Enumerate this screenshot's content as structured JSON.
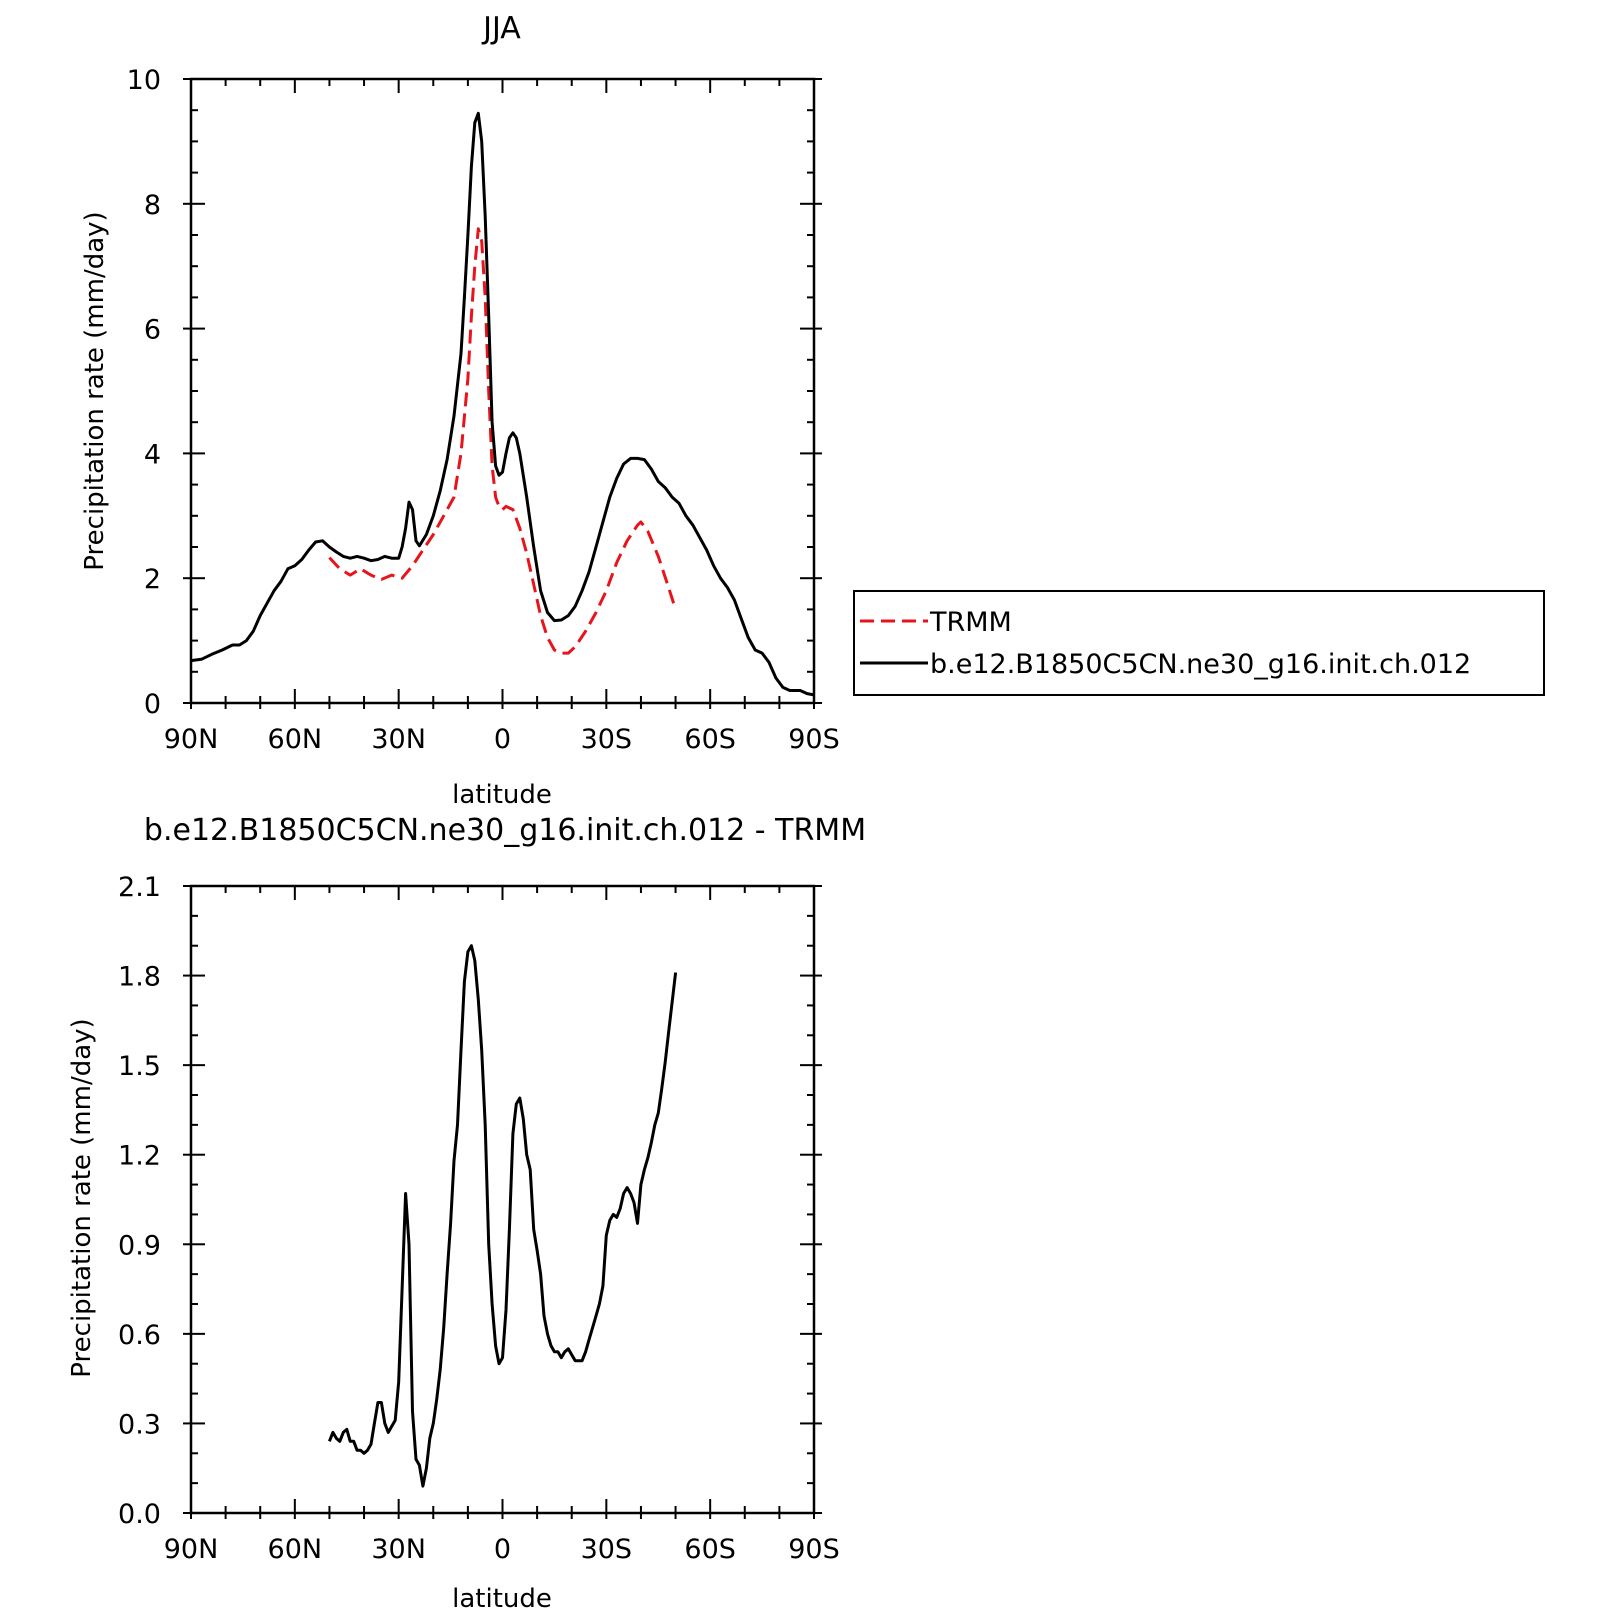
{
  "chart_data": [
    {
      "type": "line",
      "title": "JJA",
      "xlabel": "latitude",
      "ylabel": "Precipitation rate (mm/day)",
      "xlim": [
        90,
        -90
      ],
      "ylim": [
        0,
        10
      ],
      "xticks": [
        {
          "value": 90,
          "label": "90N"
        },
        {
          "value": 60,
          "label": "60N"
        },
        {
          "value": 30,
          "label": "30N"
        },
        {
          "value": 0,
          "label": "0"
        },
        {
          "value": -30,
          "label": "30S"
        },
        {
          "value": -60,
          "label": "60S"
        },
        {
          "value": -90,
          "label": "90S"
        }
      ],
      "yticks": [
        {
          "value": 0,
          "label": "0"
        },
        {
          "value": 2,
          "label": "2"
        },
        {
          "value": 4,
          "label": "4"
        },
        {
          "value": 6,
          "label": "6"
        },
        {
          "value": 8,
          "label": "8"
        },
        {
          "value": 10,
          "label": "10"
        }
      ],
      "legend": {
        "position": "right"
      },
      "series": [
        {
          "name": "TRMM",
          "color": "#e8141b",
          "dash": "dashed",
          "points": [
            [
              50,
              2.33
            ],
            [
              47,
              2.15
            ],
            [
              44,
              2.05
            ],
            [
              41,
              2.15
            ],
            [
              38,
              2.05
            ],
            [
              35,
              1.98
            ],
            [
              32,
              2.05
            ],
            [
              29,
              2.0
            ],
            [
              26,
              2.2
            ],
            [
              23,
              2.45
            ],
            [
              20,
              2.7
            ],
            [
              17,
              3.0
            ],
            [
              14,
              3.3
            ],
            [
              12,
              4.0
            ],
            [
              10,
              5.2
            ],
            [
              9,
              6.2
            ],
            [
              8,
              7.0
            ],
            [
              7,
              7.6
            ],
            [
              6,
              7.4
            ],
            [
              5,
              6.5
            ],
            [
              4,
              5.0
            ],
            [
              3,
              3.8
            ],
            [
              2,
              3.3
            ],
            [
              1,
              3.15
            ],
            [
              0,
              3.1
            ],
            [
              -1,
              3.15
            ],
            [
              -3,
              3.1
            ],
            [
              -5,
              2.8
            ],
            [
              -7,
              2.4
            ],
            [
              -9,
              1.9
            ],
            [
              -11,
              1.4
            ],
            [
              -13,
              1.05
            ],
            [
              -15,
              0.85
            ],
            [
              -17,
              0.8
            ],
            [
              -19,
              0.8
            ],
            [
              -21,
              0.9
            ],
            [
              -24,
              1.15
            ],
            [
              -27,
              1.45
            ],
            [
              -30,
              1.8
            ],
            [
              -33,
              2.25
            ],
            [
              -36,
              2.6
            ],
            [
              -39,
              2.85
            ],
            [
              -40,
              2.9
            ],
            [
              -42,
              2.75
            ],
            [
              -45,
              2.35
            ],
            [
              -48,
              1.85
            ],
            [
              -50,
              1.5
            ]
          ]
        },
        {
          "name": "b.e12.B1850C5CN.ne30_g16.init.ch.012",
          "color": "#000000",
          "dash": "solid",
          "points": [
            [
              90,
              0.68
            ],
            [
              87,
              0.7
            ],
            [
              84,
              0.78
            ],
            [
              81,
              0.85
            ],
            [
              78,
              0.93
            ],
            [
              76,
              0.93
            ],
            [
              74,
              1.0
            ],
            [
              72,
              1.15
            ],
            [
              70,
              1.4
            ],
            [
              68,
              1.6
            ],
            [
              66,
              1.8
            ],
            [
              64,
              1.95
            ],
            [
              62,
              2.15
            ],
            [
              60,
              2.2
            ],
            [
              58,
              2.3
            ],
            [
              56,
              2.45
            ],
            [
              54,
              2.58
            ],
            [
              52,
              2.6
            ],
            [
              50,
              2.5
            ],
            [
              48,
              2.42
            ],
            [
              46,
              2.35
            ],
            [
              44,
              2.32
            ],
            [
              42,
              2.35
            ],
            [
              40,
              2.32
            ],
            [
              38,
              2.28
            ],
            [
              36,
              2.3
            ],
            [
              34,
              2.35
            ],
            [
              32,
              2.32
            ],
            [
              30,
              2.32
            ],
            [
              29,
              2.5
            ],
            [
              28,
              2.8
            ],
            [
              27,
              3.22
            ],
            [
              26,
              3.1
            ],
            [
              25,
              2.6
            ],
            [
              24,
              2.52
            ],
            [
              22,
              2.7
            ],
            [
              20,
              3.0
            ],
            [
              18,
              3.4
            ],
            [
              16,
              3.9
            ],
            [
              14,
              4.6
            ],
            [
              12,
              5.6
            ],
            [
              11,
              6.5
            ],
            [
              10,
              7.5
            ],
            [
              9,
              8.6
            ],
            [
              8,
              9.3
            ],
            [
              7,
              9.45
            ],
            [
              6,
              9.0
            ],
            [
              5,
              7.8
            ],
            [
              4,
              6.2
            ],
            [
              3,
              4.5
            ],
            [
              2,
              3.8
            ],
            [
              1,
              3.65
            ],
            [
              0,
              3.7
            ],
            [
              -1,
              4.0
            ],
            [
              -2,
              4.25
            ],
            [
              -3,
              4.33
            ],
            [
              -4,
              4.25
            ],
            [
              -5,
              4.0
            ],
            [
              -7,
              3.3
            ],
            [
              -9,
              2.5
            ],
            [
              -11,
              1.8
            ],
            [
              -13,
              1.45
            ],
            [
              -15,
              1.32
            ],
            [
              -17,
              1.33
            ],
            [
              -19,
              1.4
            ],
            [
              -21,
              1.55
            ],
            [
              -23,
              1.8
            ],
            [
              -25,
              2.1
            ],
            [
              -27,
              2.5
            ],
            [
              -29,
              2.9
            ],
            [
              -31,
              3.3
            ],
            [
              -33,
              3.6
            ],
            [
              -35,
              3.83
            ],
            [
              -37,
              3.92
            ],
            [
              -39,
              3.92
            ],
            [
              -41,
              3.9
            ],
            [
              -43,
              3.75
            ],
            [
              -45,
              3.55
            ],
            [
              -47,
              3.45
            ],
            [
              -49,
              3.3
            ],
            [
              -51,
              3.2
            ],
            [
              -53,
              3.0
            ],
            [
              -55,
              2.85
            ],
            [
              -57,
              2.65
            ],
            [
              -59,
              2.45
            ],
            [
              -61,
              2.2
            ],
            [
              -63,
              2.0
            ],
            [
              -65,
              1.85
            ],
            [
              -67,
              1.65
            ],
            [
              -69,
              1.35
            ],
            [
              -71,
              1.05
            ],
            [
              -73,
              0.85
            ],
            [
              -75,
              0.8
            ],
            [
              -77,
              0.65
            ],
            [
              -79,
              0.4
            ],
            [
              -81,
              0.25
            ],
            [
              -83,
              0.2
            ],
            [
              -86,
              0.2
            ],
            [
              -88,
              0.15
            ],
            [
              -90,
              0.13
            ]
          ]
        }
      ]
    },
    {
      "type": "line",
      "title": "b.e12.B1850C5CN.ne30_g16.init.ch.012 - TRMM",
      "xlabel": "latitude",
      "ylabel": "Precipitation rate (mm/day)",
      "xlim": [
        90,
        -90
      ],
      "ylim": [
        0,
        2.1
      ],
      "xticks": [
        {
          "value": 90,
          "label": "90N"
        },
        {
          "value": 60,
          "label": "60N"
        },
        {
          "value": 30,
          "label": "30N"
        },
        {
          "value": 0,
          "label": "0"
        },
        {
          "value": -30,
          "label": "30S"
        },
        {
          "value": -60,
          "label": "60S"
        },
        {
          "value": -90,
          "label": "90S"
        }
      ],
      "yticks": [
        {
          "value": 0,
          "label": "0.0"
        },
        {
          "value": 0.3,
          "label": "0.3"
        },
        {
          "value": 0.6,
          "label": "0.6"
        },
        {
          "value": 0.9,
          "label": "0.9"
        },
        {
          "value": 1.2,
          "label": "1.2"
        },
        {
          "value": 1.5,
          "label": "1.5"
        },
        {
          "value": 1.8,
          "label": "1.8"
        },
        {
          "value": 2.1,
          "label": "2.1"
        }
      ],
      "series": [
        {
          "color": "#000000",
          "dash": "solid",
          "points": [
            [
              50,
              0.24
            ],
            [
              49,
              0.27
            ],
            [
              48,
              0.25
            ],
            [
              47,
              0.24
            ],
            [
              46,
              0.27
            ],
            [
              45,
              0.28
            ],
            [
              44,
              0.24
            ],
            [
              43,
              0.24
            ],
            [
              42,
              0.21
            ],
            [
              41,
              0.21
            ],
            [
              40,
              0.2
            ],
            [
              39,
              0.21
            ],
            [
              38,
              0.23
            ],
            [
              37,
              0.3
            ],
            [
              36,
              0.37
            ],
            [
              35,
              0.37
            ],
            [
              34,
              0.3
            ],
            [
              33,
              0.27
            ],
            [
              32,
              0.29
            ],
            [
              31,
              0.31
            ],
            [
              30,
              0.44
            ],
            [
              29,
              0.75
            ],
            [
              28,
              1.07
            ],
            [
              27,
              0.9
            ],
            [
              26,
              0.34
            ],
            [
              25,
              0.18
            ],
            [
              24,
              0.16
            ],
            [
              23,
              0.09
            ],
            [
              22,
              0.15
            ],
            [
              21,
              0.25
            ],
            [
              20,
              0.3
            ],
            [
              19,
              0.38
            ],
            [
              18,
              0.48
            ],
            [
              17,
              0.62
            ],
            [
              16,
              0.8
            ],
            [
              15,
              0.97
            ],
            [
              14,
              1.18
            ],
            [
              13,
              1.3
            ],
            [
              12,
              1.55
            ],
            [
              11,
              1.78
            ],
            [
              10,
              1.88
            ],
            [
              9,
              1.9
            ],
            [
              8,
              1.85
            ],
            [
              7,
              1.72
            ],
            [
              6,
              1.55
            ],
            [
              5,
              1.3
            ],
            [
              4,
              0.9
            ],
            [
              3,
              0.7
            ],
            [
              2,
              0.56
            ],
            [
              1,
              0.5
            ],
            [
              0,
              0.52
            ],
            [
              -1,
              0.68
            ],
            [
              -2,
              0.95
            ],
            [
              -3,
              1.27
            ],
            [
              -4,
              1.37
            ],
            [
              -5,
              1.39
            ],
            [
              -6,
              1.32
            ],
            [
              -7,
              1.2
            ],
            [
              -8,
              1.15
            ],
            [
              -9,
              0.95
            ],
            [
              -10,
              0.88
            ],
            [
              -11,
              0.8
            ],
            [
              -12,
              0.66
            ],
            [
              -13,
              0.6
            ],
            [
              -14,
              0.56
            ],
            [
              -15,
              0.54
            ],
            [
              -16,
              0.54
            ],
            [
              -17,
              0.52
            ],
            [
              -18,
              0.54
            ],
            [
              -19,
              0.55
            ],
            [
              -20,
              0.53
            ],
            [
              -21,
              0.51
            ],
            [
              -22,
              0.51
            ],
            [
              -23,
              0.51
            ],
            [
              -24,
              0.54
            ],
            [
              -25,
              0.58
            ],
            [
              -26,
              0.62
            ],
            [
              -27,
              0.66
            ],
            [
              -28,
              0.7
            ],
            [
              -29,
              0.76
            ],
            [
              -30,
              0.93
            ],
            [
              -31,
              0.98
            ],
            [
              -32,
              1.0
            ],
            [
              -33,
              0.99
            ],
            [
              -34,
              1.02
            ],
            [
              -35,
              1.07
            ],
            [
              -36,
              1.09
            ],
            [
              -37,
              1.07
            ],
            [
              -38,
              1.04
            ],
            [
              -39,
              0.97
            ],
            [
              -40,
              1.1
            ],
            [
              -41,
              1.15
            ],
            [
              -42,
              1.19
            ],
            [
              -43,
              1.24
            ],
            [
              -44,
              1.3
            ],
            [
              -45,
              1.34
            ],
            [
              -46,
              1.42
            ],
            [
              -47,
              1.51
            ],
            [
              -48,
              1.61
            ],
            [
              -49,
              1.71
            ],
            [
              -50,
              1.81
            ]
          ]
        }
      ]
    }
  ]
}
